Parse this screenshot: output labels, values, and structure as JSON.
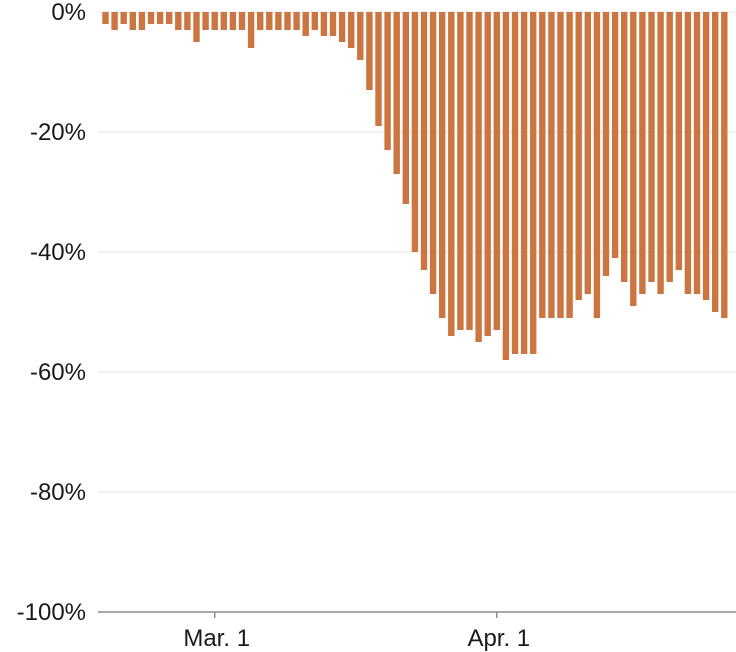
{
  "chart_data": {
    "type": "bar",
    "title": "",
    "xlabel": "",
    "ylabel": "",
    "ylim": [
      -100,
      0
    ],
    "y_ticks": [
      0,
      -20,
      -40,
      -60,
      -80,
      -100
    ],
    "y_tick_labels": [
      "0%",
      "-20%",
      "-40%",
      "-60%",
      "-80%",
      "-100%"
    ],
    "x_ticks": [
      {
        "label": "Mar. 1",
        "date": "2020-03-01"
      },
      {
        "label": "Apr. 1",
        "date": "2020-04-01"
      }
    ],
    "x": [
      "2020-02-18",
      "2020-02-19",
      "2020-02-20",
      "2020-02-21",
      "2020-02-22",
      "2020-02-23",
      "2020-02-24",
      "2020-02-25",
      "2020-02-26",
      "2020-02-27",
      "2020-02-28",
      "2020-02-29",
      "2020-03-01",
      "2020-03-02",
      "2020-03-03",
      "2020-03-04",
      "2020-03-05",
      "2020-03-06",
      "2020-03-07",
      "2020-03-08",
      "2020-03-09",
      "2020-03-10",
      "2020-03-11",
      "2020-03-12",
      "2020-03-13",
      "2020-03-14",
      "2020-03-15",
      "2020-03-16",
      "2020-03-17",
      "2020-03-18",
      "2020-03-19",
      "2020-03-20",
      "2020-03-21",
      "2020-03-22",
      "2020-03-23",
      "2020-03-24",
      "2020-03-25",
      "2020-03-26",
      "2020-03-27",
      "2020-03-28",
      "2020-03-29",
      "2020-03-30",
      "2020-03-31",
      "2020-04-01",
      "2020-04-02",
      "2020-04-03",
      "2020-04-04",
      "2020-04-05",
      "2020-04-06",
      "2020-04-07",
      "2020-04-08",
      "2020-04-09",
      "2020-04-10",
      "2020-04-11",
      "2020-04-12",
      "2020-04-13",
      "2020-04-14",
      "2020-04-15",
      "2020-04-16",
      "2020-04-17",
      "2020-04-18",
      "2020-04-19",
      "2020-04-20",
      "2020-04-21",
      "2020-04-22",
      "2020-04-23",
      "2020-04-24",
      "2020-04-25",
      "2020-04-26"
    ],
    "values": [
      -2,
      -3,
      -2,
      -3,
      -3,
      -2,
      -2,
      -2,
      -3,
      -3,
      -5,
      -3,
      -3,
      -3,
      -3,
      -3,
      -6,
      -3,
      -3,
      -3,
      -3,
      -3,
      -4,
      -3,
      -4,
      -4,
      -5,
      -6,
      -8,
      -13,
      -19,
      -23,
      -27,
      -32,
      -40,
      -43,
      -47,
      -51,
      -54,
      -53,
      -53,
      -55,
      -54,
      -53,
      -58,
      -57,
      -57,
      -57,
      -51,
      -51,
      -51,
      -51,
      -48,
      -47,
      -51,
      -44,
      -41,
      -45,
      -49,
      -47,
      -45,
      -47,
      -45,
      -43,
      -47,
      -47,
      -48,
      -50,
      -51
    ],
    "bar_color": "#cc7540",
    "grid": true,
    "legend": "none"
  }
}
